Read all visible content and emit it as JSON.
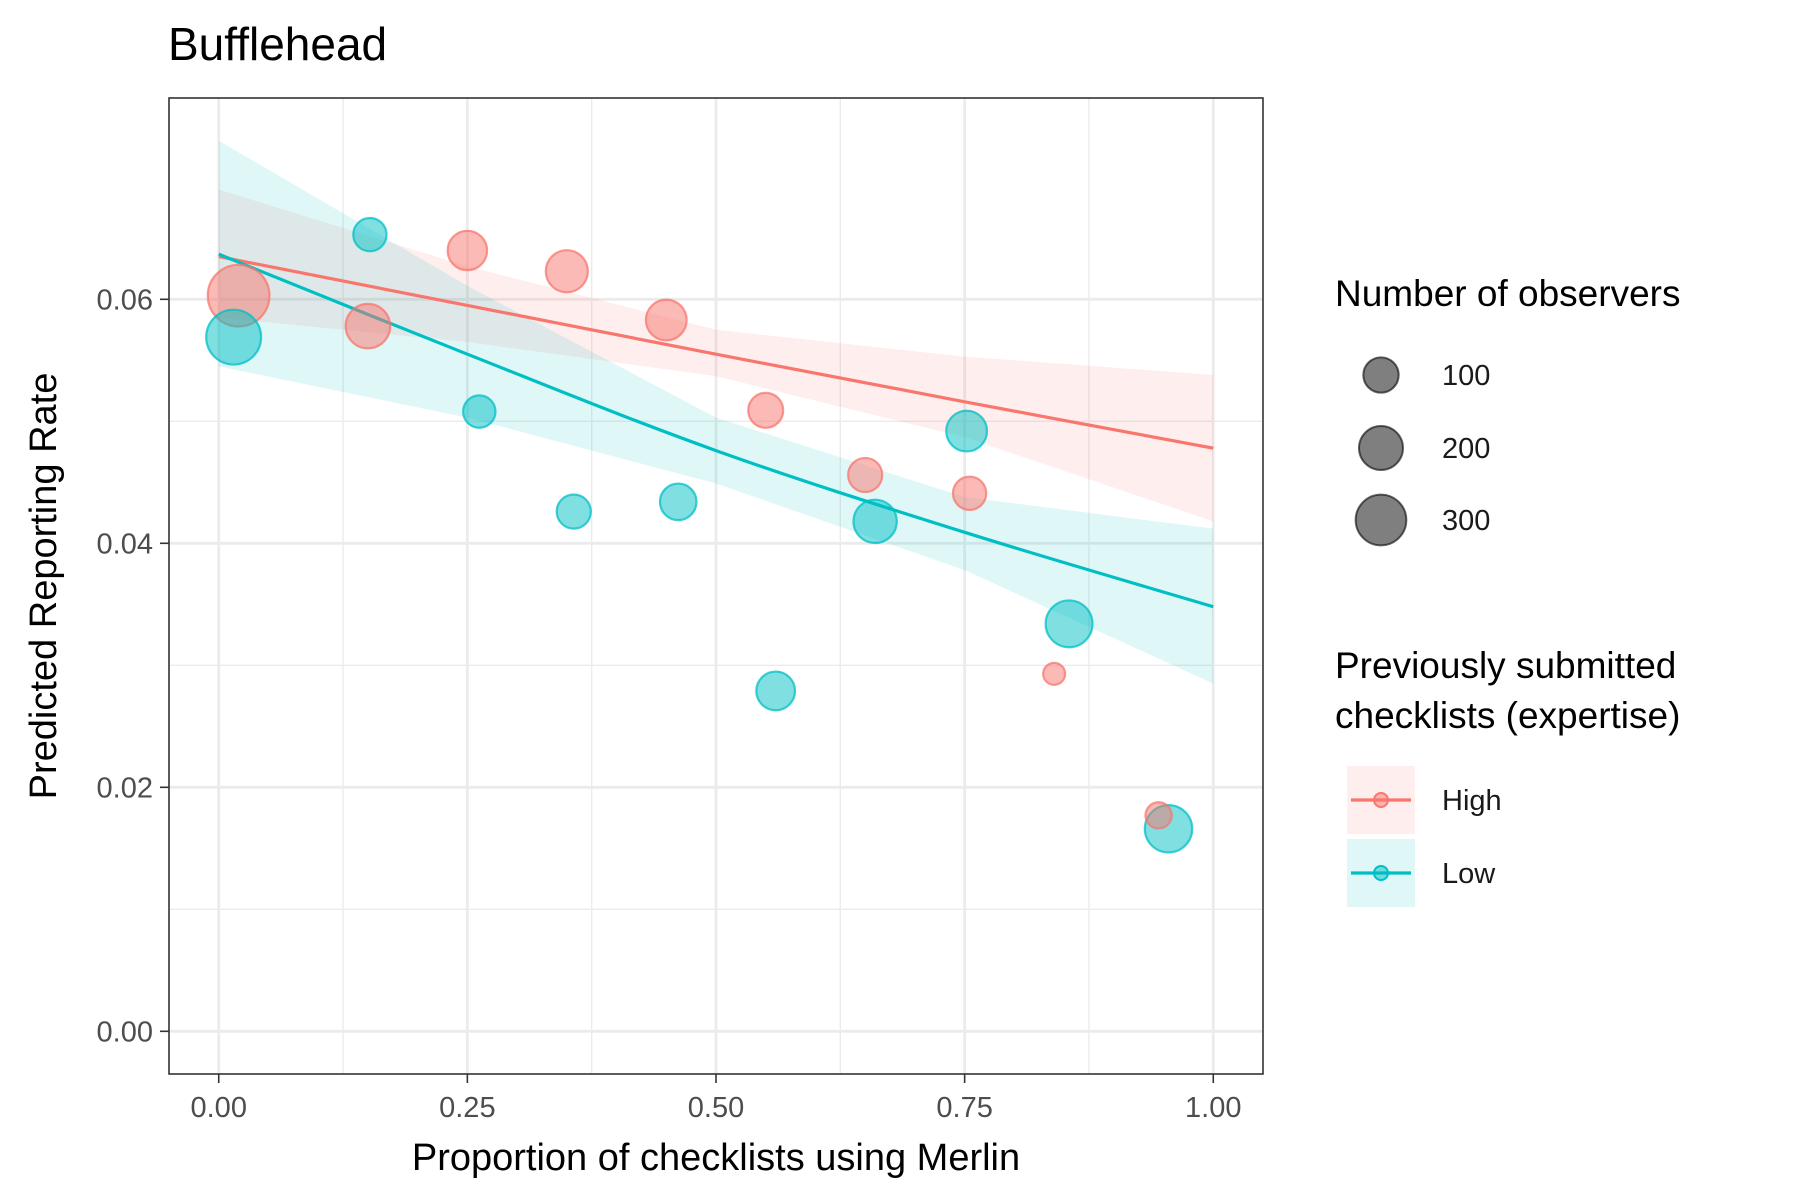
{
  "chart_data": {
    "type": "scatter",
    "title": "Bufflehead",
    "xlabel": "Proportion of checklists using Merlin",
    "ylabel": "Predicted Reporting Rate",
    "xlim": [
      -0.05,
      1.05
    ],
    "ylim": [
      -0.0035,
      0.0765
    ],
    "x_ticks": [
      0.0,
      0.25,
      0.5,
      0.75,
      1.0
    ],
    "x_tick_labels": [
      "0.00",
      "0.25",
      "0.50",
      "0.75",
      "1.00"
    ],
    "y_ticks": [
      0.0,
      0.02,
      0.04,
      0.06
    ],
    "y_tick_labels": [
      "0.00",
      "0.02",
      "0.04",
      "0.06"
    ],
    "grid": true,
    "legend_position": "right",
    "size_legend": {
      "title": "Number of observers",
      "entries": [
        {
          "label": "100",
          "value": 100
        },
        {
          "label": "200",
          "value": 200
        },
        {
          "label": "300",
          "value": 300
        }
      ]
    },
    "color_legend": {
      "title": [
        "Previously submitted",
        "checklists (expertise)"
      ],
      "entries": [
        {
          "label": "High",
          "color": "#f8766d"
        },
        {
          "label": "Low",
          "color": "#00bfc4"
        }
      ]
    },
    "series": [
      {
        "name": "High",
        "color": "#f8766d",
        "points": [
          {
            "x": 0.02,
            "y": 0.0603,
            "size": 330
          },
          {
            "x": 0.15,
            "y": 0.0578,
            "size": 150
          },
          {
            "x": 0.25,
            "y": 0.064,
            "size": 110
          },
          {
            "x": 0.35,
            "y": 0.0623,
            "size": 130
          },
          {
            "x": 0.45,
            "y": 0.0583,
            "size": 120
          },
          {
            "x": 0.55,
            "y": 0.0509,
            "size": 80
          },
          {
            "x": 0.65,
            "y": 0.0456,
            "size": 75
          },
          {
            "x": 0.755,
            "y": 0.0441,
            "size": 70
          },
          {
            "x": 0.84,
            "y": 0.0293,
            "size": 20
          },
          {
            "x": 0.945,
            "y": 0.0177,
            "size": 35
          }
        ],
        "trend": {
          "x": [
            0.0,
            0.25,
            0.5,
            0.75,
            1.0
          ],
          "y": [
            0.0635,
            0.0595,
            0.0555,
            0.0516,
            0.0478
          ],
          "lower": [
            0.0585,
            0.0565,
            0.0537,
            0.0487,
            0.0418
          ],
          "upper": [
            0.069,
            0.0627,
            0.0575,
            0.0553,
            0.0538
          ]
        }
      },
      {
        "name": "Low",
        "color": "#00bfc4",
        "points": [
          {
            "x": 0.015,
            "y": 0.0569,
            "size": 250
          },
          {
            "x": 0.152,
            "y": 0.0653,
            "size": 70
          },
          {
            "x": 0.262,
            "y": 0.0508,
            "size": 65
          },
          {
            "x": 0.357,
            "y": 0.0426,
            "size": 75
          },
          {
            "x": 0.462,
            "y": 0.0434,
            "size": 90
          },
          {
            "x": 0.56,
            "y": 0.0279,
            "size": 105
          },
          {
            "x": 0.66,
            "y": 0.0418,
            "size": 140
          },
          {
            "x": 0.752,
            "y": 0.0492,
            "size": 120
          },
          {
            "x": 0.855,
            "y": 0.0334,
            "size": 170
          },
          {
            "x": 0.955,
            "y": 0.0166,
            "size": 175
          }
        ],
        "trend": {
          "x": [
            0.0,
            0.25,
            0.5,
            0.75,
            1.0
          ],
          "y": [
            0.0637,
            0.0555,
            0.0476,
            0.0409,
            0.0348
          ],
          "lower": [
            0.0545,
            0.0503,
            0.0449,
            0.0378,
            0.0285
          ],
          "upper": [
            0.073,
            0.0611,
            0.0503,
            0.0438,
            0.0412
          ]
        }
      }
    ]
  }
}
